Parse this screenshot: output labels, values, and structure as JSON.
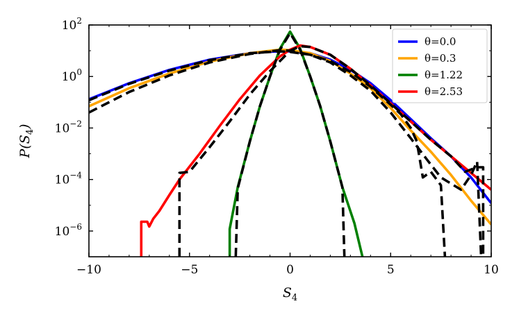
{
  "chart_data": {
    "type": "line",
    "xlabel_main": "S",
    "xlabel_sub": "4",
    "ylabel_main": "P(S",
    "ylabel_sub": "4",
    "ylabel_close": ")",
    "xlim": [
      -10,
      10
    ],
    "ylim_exp": [
      -7,
      2
    ],
    "yscale": "log",
    "x_ticks": [
      -10,
      -5,
      0,
      5,
      10
    ],
    "x_tick_labels": [
      "−10",
      "−5",
      "0",
      "5",
      "10"
    ],
    "y_ticks_exp": [
      2,
      0,
      -2,
      -4,
      -6
    ],
    "y_tick_base": "10",
    "y_tick_exps": [
      "2",
      "0",
      "−2",
      "−4",
      "−6"
    ],
    "grid": false,
    "legend_position": "top-right",
    "series": [
      {
        "name": "θ=0.0",
        "legend_label": "θ=0.0",
        "color": "#0000ff",
        "points": [
          [
            -10,
            0.13
          ],
          [
            -8,
            0.55
          ],
          [
            -6,
            1.8
          ],
          [
            -4,
            4.5
          ],
          [
            -2,
            8
          ],
          [
            -1,
            9.2
          ],
          [
            0,
            9.5
          ],
          [
            1,
            8
          ],
          [
            2,
            4.5
          ],
          [
            3,
            1.8
          ],
          [
            4,
            0.55
          ],
          [
            5,
            0.12
          ],
          [
            6,
            0.022
          ],
          [
            7,
            0.004
          ],
          [
            8,
            0.0008
          ],
          [
            9,
            0.00012
          ],
          [
            10,
            1.2e-05
          ]
        ]
      },
      {
        "name": "θ=0.3",
        "legend_label": "θ=0.3",
        "color": "#ffa500",
        "points": [
          [
            -10,
            0.07
          ],
          [
            -8,
            0.35
          ],
          [
            -6,
            1.3
          ],
          [
            -4,
            3.8
          ],
          [
            -2,
            8
          ],
          [
            -1,
            10
          ],
          [
            -0.5,
            11
          ],
          [
            0,
            10.5
          ],
          [
            1,
            8
          ],
          [
            2,
            4
          ],
          [
            3,
            1.3
          ],
          [
            4,
            0.35
          ],
          [
            5,
            0.06
          ],
          [
            6,
            0.008
          ],
          [
            7,
            0.0012
          ],
          [
            8,
            0.00015
          ],
          [
            9,
            1.5e-05
          ],
          [
            10,
            1.8e-06
          ]
        ]
      },
      {
        "name": "θ=1.22",
        "legend_label": "θ=1.22",
        "color": "#008000",
        "points": [
          [
            -3,
            1e-07
          ],
          [
            -3,
            1.2e-06
          ],
          [
            -2.6,
            5e-05
          ],
          [
            -2,
            0.003
          ],
          [
            -1.5,
            0.07
          ],
          [
            -1,
            1
          ],
          [
            -0.5,
            12
          ],
          [
            0,
            55
          ],
          [
            0.5,
            12
          ],
          [
            1,
            1
          ],
          [
            1.5,
            0.07
          ],
          [
            2,
            0.003
          ],
          [
            2.6,
            5e-05
          ],
          [
            3.2,
            2e-06
          ],
          [
            3.6,
            1e-07
          ]
        ]
      },
      {
        "name": "θ=2.53",
        "legend_label": "θ=2.53",
        "color": "#ff0000",
        "points": [
          [
            -7.4,
            1e-07
          ],
          [
            -7.4,
            2.3e-06
          ],
          [
            -7.1,
            2.3e-06
          ],
          [
            -7,
            1.5e-06
          ],
          [
            -6.8,
            3e-06
          ],
          [
            -6.5,
            6e-06
          ],
          [
            -6,
            2.5e-05
          ],
          [
            -5.5,
            0.0001
          ],
          [
            -4.5,
            0.001
          ],
          [
            -3.5,
            0.012
          ],
          [
            -2.5,
            0.13
          ],
          [
            -1.5,
            1.1
          ],
          [
            -0.5,
            6
          ],
          [
            0,
            11
          ],
          [
            0.5,
            16
          ],
          [
            1,
            14
          ],
          [
            2,
            7
          ],
          [
            3,
            2
          ],
          [
            4,
            0.45
          ],
          [
            5,
            0.09
          ],
          [
            6,
            0.018
          ],
          [
            7,
            0.0035
          ],
          [
            8,
            0.0008
          ],
          [
            9,
            0.00018
          ],
          [
            10,
            4e-05
          ]
        ]
      },
      {
        "name": "",
        "color": "#000000",
        "dashed": true,
        "points": [
          [
            -10,
            0.12
          ],
          [
            -8,
            0.52
          ],
          [
            -6,
            1.7
          ],
          [
            -4,
            4.3
          ],
          [
            -2,
            8
          ],
          [
            -0.5,
            9.5
          ],
          [
            0,
            9
          ],
          [
            1,
            7
          ],
          [
            2,
            4
          ],
          [
            3,
            1.5
          ],
          [
            4,
            0.4
          ],
          [
            5,
            0.08
          ],
          [
            5.5,
            0.035
          ],
          [
            6,
            0.01
          ],
          [
            6.3,
            0.003
          ],
          [
            6.6,
            0.00012
          ],
          [
            7,
            0.0002
          ],
          [
            7.5,
            6e-05
          ],
          [
            7.7,
            1e-07
          ]
        ]
      },
      {
        "name": "",
        "color": "#000000",
        "dashed": true,
        "points": [
          [
            -10,
            0.04
          ],
          [
            -8,
            0.25
          ],
          [
            -6,
            1.1
          ],
          [
            -4,
            3.5
          ],
          [
            -2,
            7.5
          ],
          [
            -0.5,
            10.5
          ],
          [
            0,
            10
          ],
          [
            1,
            7
          ],
          [
            2,
            3.5
          ],
          [
            3,
            1.1
          ],
          [
            4,
            0.28
          ],
          [
            5,
            0.04
          ],
          [
            6,
            0.004
          ],
          [
            6.8,
            0.0006
          ],
          [
            7.5,
            0.00012
          ],
          [
            8.5,
            4e-05
          ],
          [
            9,
            0.00015
          ],
          [
            9.3,
            0.0005
          ],
          [
            9.5,
            1e-07
          ]
        ]
      },
      {
        "name": "",
        "color": "#000000",
        "dashed": true,
        "points": [
          [
            -2.7,
            1e-07
          ],
          [
            -2.6,
            4.5e-05
          ],
          [
            -2,
            0.003
          ],
          [
            -1.5,
            0.07
          ],
          [
            -1,
            1
          ],
          [
            -0.5,
            11
          ],
          [
            0,
            48
          ],
          [
            0.5,
            11
          ],
          [
            1,
            1
          ],
          [
            1.5,
            0.07
          ],
          [
            2,
            0.003
          ],
          [
            2.6,
            5e-05
          ],
          [
            2.7,
            1e-07
          ]
        ]
      },
      {
        "name": "",
        "color": "#000000",
        "dashed": true,
        "points": [
          [
            -5.5,
            1e-07
          ],
          [
            -5.5,
            0.00018
          ],
          [
            -5,
            0.0002
          ],
          [
            -4,
            0.0018
          ],
          [
            -3,
            0.018
          ],
          [
            -2,
            0.2
          ],
          [
            -1,
            1.6
          ],
          [
            0,
            10
          ],
          [
            0.5,
            15
          ],
          [
            1,
            14
          ],
          [
            2,
            7
          ],
          [
            3,
            2
          ],
          [
            4,
            0.45
          ],
          [
            5,
            0.09
          ],
          [
            6,
            0.018
          ],
          [
            7,
            0.0035
          ],
          [
            8,
            0.0008
          ],
          [
            8.7,
            0.0002
          ],
          [
            9.3,
            0.0003
          ],
          [
            9.6,
            0.0003
          ],
          [
            9.6,
            1e-07
          ]
        ]
      }
    ]
  }
}
